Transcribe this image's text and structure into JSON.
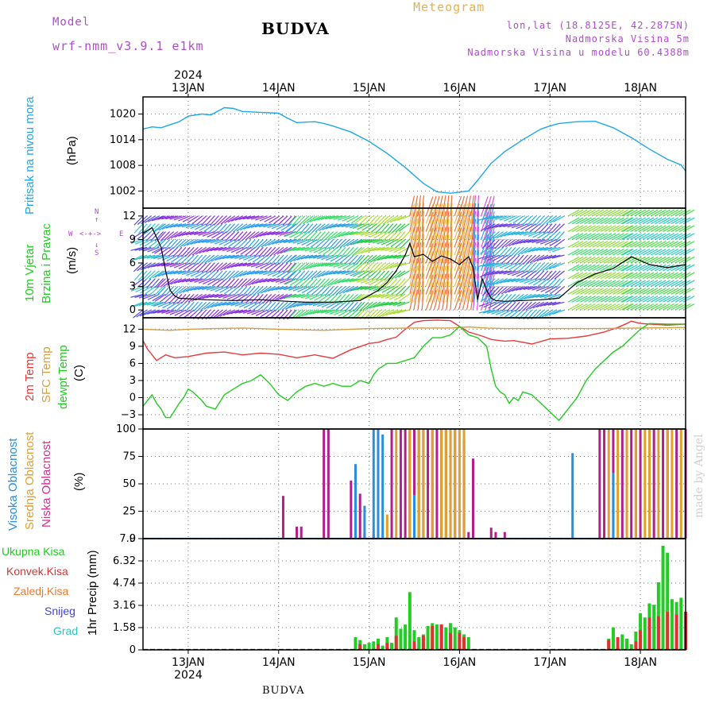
{
  "header": {
    "model_label": "Model",
    "model_name": "wrf-nmm_v3.9.1 e1km",
    "title": "BUDVA",
    "meteogram_label": "Meteogram",
    "lonlat": "lon,lat (18.8125E, 42.2875N)",
    "elevation": "Nadmorska Visina 5m",
    "model_elevation": "Nadmorska Visina u modelu 60.4388m"
  },
  "footer": {
    "location": "BUDVA",
    "watermark": "made by Angel"
  },
  "colors": {
    "pressure": "#1ea8e8",
    "temp2m": "#e83a3a",
    "sfc": "#d4a040",
    "dew": "#22cc22",
    "high_cloud": "#2a8ee0",
    "mid_cloud": "#e0a030",
    "low_cloud": "#b0208a",
    "total_precip": "#22cc22",
    "conv_precip": "#e03030",
    "frz_precip": "#e87a30",
    "snow": "#4040e0",
    "hail": "#30c0c0",
    "header_purple": "#b04ad0",
    "header_orange": "#e8b050"
  },
  "panel_labels": {
    "pressure": [
      "Pritisak na nivou mora",
      "(hPa)"
    ],
    "wind": [
      "10m Vjetar",
      "Brzina i Pravac",
      "(m/s)"
    ],
    "wind_compass": {
      "north": "N",
      "south": "S",
      "west": "W",
      "east": "E"
    },
    "temp": [
      "2m Temp",
      "SFC Temp",
      "dewpt Temp",
      "(C)"
    ],
    "cloud": [
      "Visoka Oblacnost",
      "Srednja Oblacnost",
      "Niska Oblacnost",
      "(%)"
    ],
    "precip": [
      "1hr Precip (mm)"
    ]
  },
  "precip_legend": [
    "Ukupna Kisa",
    "Konvek.Kisa",
    "Zaledj.Kisa",
    "Snijeg",
    "Grad"
  ],
  "chart_data": {
    "type": "line",
    "x_label_top": "2024",
    "x_label_bottom": "2024",
    "x_dates": [
      "13JAN",
      "14JAN",
      "15JAN",
      "16JAN",
      "17JAN",
      "18JAN"
    ],
    "x_range_days": [
      12.5,
      18.5
    ],
    "panels": [
      {
        "name": "pressure",
        "ylim": [
          998,
          1024
        ],
        "yticks": [
          1002,
          1008,
          1014,
          1020
        ],
        "series": [
          {
            "key": "pressure",
            "x": [
              12.5,
              12.6,
              12.7,
              12.9,
              13.0,
              13.15,
              13.25,
              13.4,
              13.5,
              13.6,
              13.8,
              14.0,
              14.1,
              14.2,
              14.4,
              14.5,
              14.6,
              14.8,
              15.0,
              15.2,
              15.4,
              15.6,
              15.75,
              15.9,
              16.1,
              16.2,
              16.35,
              16.5,
              16.7,
              16.9,
              17.0,
              17.1,
              17.3,
              17.5,
              17.7,
              17.9,
              18.1,
              18.3,
              18.45,
              18.5
            ],
            "y": [
              1016.5,
              1017,
              1016.8,
              1018.2,
              1019.5,
              1020,
              1019.8,
              1021.5,
              1021.3,
              1020.6,
              1020.4,
              1020.2,
              1019,
              1018,
              1018.2,
              1017.8,
              1017.2,
              1015.8,
              1013.6,
              1010.8,
              1007.5,
              1003.8,
              1001.8,
              1001.5,
              1002,
              1004.5,
              1008.5,
              1011.2,
              1014,
              1016.5,
              1017.2,
              1017.8,
              1018.2,
              1018.3,
              1016.8,
              1014.5,
              1011.8,
              1009.4,
              1008.1,
              1006.7
            ]
          }
        ]
      },
      {
        "name": "wind",
        "ylim": [
          -1,
          13
        ],
        "yticks": [
          0,
          3,
          6,
          9,
          12
        ],
        "series": [
          {
            "key": "wind_speed",
            "x": [
              12.5,
              12.6,
              12.7,
              12.75,
              12.8,
              12.85,
              12.9,
              13.2,
              13.5,
              13.8,
              14.1,
              14.3,
              14.6,
              14.9,
              15.1,
              15.2,
              15.3,
              15.4,
              15.45,
              15.5,
              15.6,
              15.7,
              15.8,
              15.9,
              16.0,
              16.1,
              16.15,
              16.2,
              16.25,
              16.3,
              16.35,
              16.4,
              16.5,
              16.7,
              16.9,
              17.1,
              17.3,
              17.5,
              17.7,
              17.9,
              18.1,
              18.3,
              18.5
            ],
            "y": [
              9.8,
              10.5,
              8,
              5,
              2.5,
              1.8,
              1.5,
              1.3,
              1.2,
              1.3,
              1.1,
              1,
              1,
              1.2,
              2.5,
              3.5,
              5,
              7,
              8.5,
              6.8,
              7.1,
              6.2,
              6.9,
              6.5,
              5.8,
              6.8,
              5.4,
              1.3,
              4,
              2.5,
              1.5,
              1.2,
              1.1,
              1.2,
              1.3,
              1.5,
              3.5,
              4.6,
              5.3,
              6.8,
              5.8,
              5.4,
              5.8
            ]
          }
        ]
      },
      {
        "name": "temp",
        "ylim": [
          -5.5,
          14
        ],
        "yticks": [
          -3,
          0,
          3,
          6,
          9,
          12
        ],
        "series": [
          {
            "key": "temp2m",
            "x": [
              12.5,
              12.55,
              12.65,
              12.75,
              12.85,
              13.0,
              13.2,
              13.4,
              13.6,
              13.8,
              14.0,
              14.2,
              14.4,
              14.6,
              14.8,
              15.0,
              15.1,
              15.2,
              15.3,
              15.4,
              15.5,
              15.6,
              15.75,
              15.9,
              16.0,
              16.1,
              16.25,
              16.35,
              16.5,
              16.6,
              16.8,
              17.0,
              17.2,
              17.4,
              17.6,
              17.75,
              17.85,
              17.9,
              18.0,
              18.1,
              18.3,
              18.5
            ],
            "y": [
              10,
              8.5,
              6.5,
              7.5,
              7,
              7.2,
              7.8,
              8,
              7.5,
              7.8,
              7.6,
              7,
              7.5,
              6.9,
              8.4,
              9.5,
              9.7,
              10.2,
              10.6,
              12,
              13.2,
              13.5,
              13.6,
              13.5,
              12.5,
              11.5,
              10.8,
              10.2,
              9.9,
              10,
              9.4,
              10.3,
              10.4,
              10.8,
              11.5,
              12.3,
              13,
              13.4,
              13,
              12.9,
              12.7,
              12.9
            ]
          },
          {
            "key": "sfc",
            "x": [
              12.5,
              12.8,
              13.0,
              13.3,
              13.6,
              14.0,
              14.5,
              15.0,
              15.5,
              15.9,
              16.1,
              16.3,
              16.5,
              17.0,
              17.5,
              18.0,
              18.5
            ],
            "y": [
              12,
              11.8,
              12,
              12.1,
              12.2,
              12,
              11.8,
              12.1,
              12.2,
              12.2,
              12.4,
              12.2,
              12.1,
              12.1,
              12.1,
              12.2,
              12.3
            ]
          },
          {
            "key": "dew",
            "x": [
              12.5,
              12.6,
              12.65,
              12.7,
              12.75,
              12.8,
              12.9,
              12.95,
              13.0,
              13.05,
              13.15,
              13.2,
              13.3,
              13.4,
              13.5,
              13.6,
              13.7,
              13.8,
              13.9,
              14.0,
              14.1,
              14.2,
              14.3,
              14.4,
              14.5,
              14.6,
              14.7,
              14.8,
              14.9,
              15.0,
              15.05,
              15.1,
              15.2,
              15.3,
              15.4,
              15.5,
              15.6,
              15.7,
              15.8,
              15.9,
              16.0,
              16.1,
              16.2,
              16.3,
              16.35,
              16.4,
              16.45,
              16.5,
              16.55,
              16.6,
              16.65,
              16.7,
              16.8,
              16.9,
              17.0,
              17.1,
              17.2,
              17.3,
              17.4,
              17.5,
              17.6,
              17.7,
              17.8,
              17.9,
              18.0,
              18.1,
              18.3,
              18.5
            ],
            "y": [
              -1.5,
              0.5,
              -1,
              -2,
              -3.5,
              -3.5,
              -1,
              0,
              1.5,
              1,
              -0.5,
              -1.5,
              -2,
              0.5,
              1.5,
              2.5,
              3,
              4,
              2.5,
              0.5,
              -0.5,
              1,
              2,
              2.5,
              2,
              2.5,
              2,
              2,
              3,
              2.5,
              4,
              5,
              6,
              6,
              6.5,
              7,
              9,
              10.5,
              10.5,
              11,
              12.5,
              11,
              10.5,
              9,
              5,
              2,
              1,
              0.5,
              -1,
              0,
              -0.5,
              1,
              0.5,
              -1,
              -2.5,
              -4,
              -2,
              0,
              3,
              5,
              6.5,
              8,
              9,
              10.5,
              12,
              13,
              12.9,
              12.9
            ]
          }
        ]
      },
      {
        "name": "cloud",
        "ylim": [
          0,
          100
        ],
        "yticks": [
          0,
          25,
          50,
          75,
          100
        ],
        "series": [
          {
            "key": "low_cloud",
            "x": [
              14.05,
              14.2,
              14.25,
              14.5,
              14.55,
              14.8,
              14.9,
              14.95,
              15.05,
              15.25,
              15.35,
              15.4,
              15.45,
              15.5,
              15.55,
              15.6,
              15.65,
              15.7,
              15.75,
              15.8,
              15.85,
              15.9,
              15.95,
              16.05,
              16.1,
              16.15,
              16.35,
              16.4,
              16.5,
              17.55,
              17.6,
              17.7,
              17.8,
              17.85,
              17.9,
              17.95,
              18.0,
              18.1,
              18.15,
              18.25,
              18.3,
              18.4,
              18.5
            ],
            "y": [
              39,
              11,
              11,
              100,
              100,
              53,
              41,
              5,
              4,
              100,
              100,
              100,
              100,
              100,
              100,
              100,
              100,
              100,
              100,
              100,
              100,
              100,
              100,
              90,
              6,
              73,
              10,
              6,
              6,
              100,
              100,
              100,
              100,
              100,
              100,
              100,
              100,
              100,
              100,
              100,
              100,
              100,
              100
            ]
          },
          {
            "key": "mid_cloud",
            "x": [
              15.2,
              15.3,
              15.45,
              15.55,
              15.6,
              15.7,
              15.8,
              15.85,
              15.9,
              15.95,
              16.0,
              16.05,
              17.65,
              17.75,
              17.85,
              17.95,
              18.05,
              18.1,
              18.2,
              18.3,
              18.35,
              18.45
            ],
            "y": [
              22,
              100,
              100,
              100,
              100,
              100,
              100,
              100,
              100,
              100,
              100,
              100,
              100,
              100,
              100,
              100,
              100,
              100,
              100,
              100,
              100,
              100
            ]
          },
          {
            "key": "high_cloud",
            "x": [
              14.85,
              14.95,
              15.05,
              15.1,
              15.15,
              15.5,
              17.25,
              17.7
            ],
            "y": [
              68,
              30,
              100,
              100,
              95,
              40,
              78,
              60
            ]
          }
        ]
      },
      {
        "name": "precip",
        "ylim": [
          0,
          7.9
        ],
        "yticks": [
          0,
          1.58,
          3.16,
          4.74,
          6.32,
          7.9
        ],
        "series": [
          {
            "key": "total_precip",
            "x": [
              14.85,
              14.9,
              14.95,
              15.0,
              15.05,
              15.1,
              15.15,
              15.2,
              15.25,
              15.3,
              15.35,
              15.4,
              15.45,
              15.5,
              15.55,
              15.6,
              15.65,
              15.7,
              15.75,
              15.8,
              15.85,
              15.9,
              15.95,
              16.0,
              16.05,
              16.1,
              17.65,
              17.7,
              17.75,
              17.8,
              17.85,
              17.9,
              17.95,
              18.0,
              18.05,
              18.1,
              18.15,
              18.2,
              18.25,
              18.3,
              18.35,
              18.4,
              18.45,
              18.5
            ],
            "y": [
              0.9,
              0.7,
              0.4,
              0.5,
              0.6,
              0.8,
              0.3,
              0.9,
              0.5,
              2.3,
              1.5,
              1.8,
              4.1,
              1.4,
              0.9,
              1.1,
              1.7,
              1.9,
              1.8,
              1.8,
              1.6,
              1.9,
              1.6,
              1.4,
              1.1,
              0.9,
              0.8,
              1.6,
              0.2,
              1.1,
              0.8,
              0.4,
              1.3,
              2.6,
              2.3,
              3.3,
              3.2,
              4.8,
              7.4,
              6.9,
              3.6,
              3.4,
              3.7,
              2.7
            ]
          },
          {
            "key": "conv_precip",
            "x": [
              14.9,
              15.1,
              15.2,
              15.3,
              15.5,
              15.6,
              15.7,
              15.8,
              15.9,
              16.0,
              16.05,
              17.65,
              17.75,
              17.95,
              18.0,
              18.1,
              18.2,
              18.3,
              18.4,
              18.5
            ],
            "y": [
              0.4,
              0.4,
              0.5,
              1.0,
              0.6,
              1.0,
              1.7,
              1.8,
              1.2,
              1.2,
              0.9,
              0.7,
              0.9,
              0.6,
              1.4,
              2.3,
              2.4,
              2.7,
              2.5,
              2.7
            ]
          }
        ]
      }
    ]
  }
}
